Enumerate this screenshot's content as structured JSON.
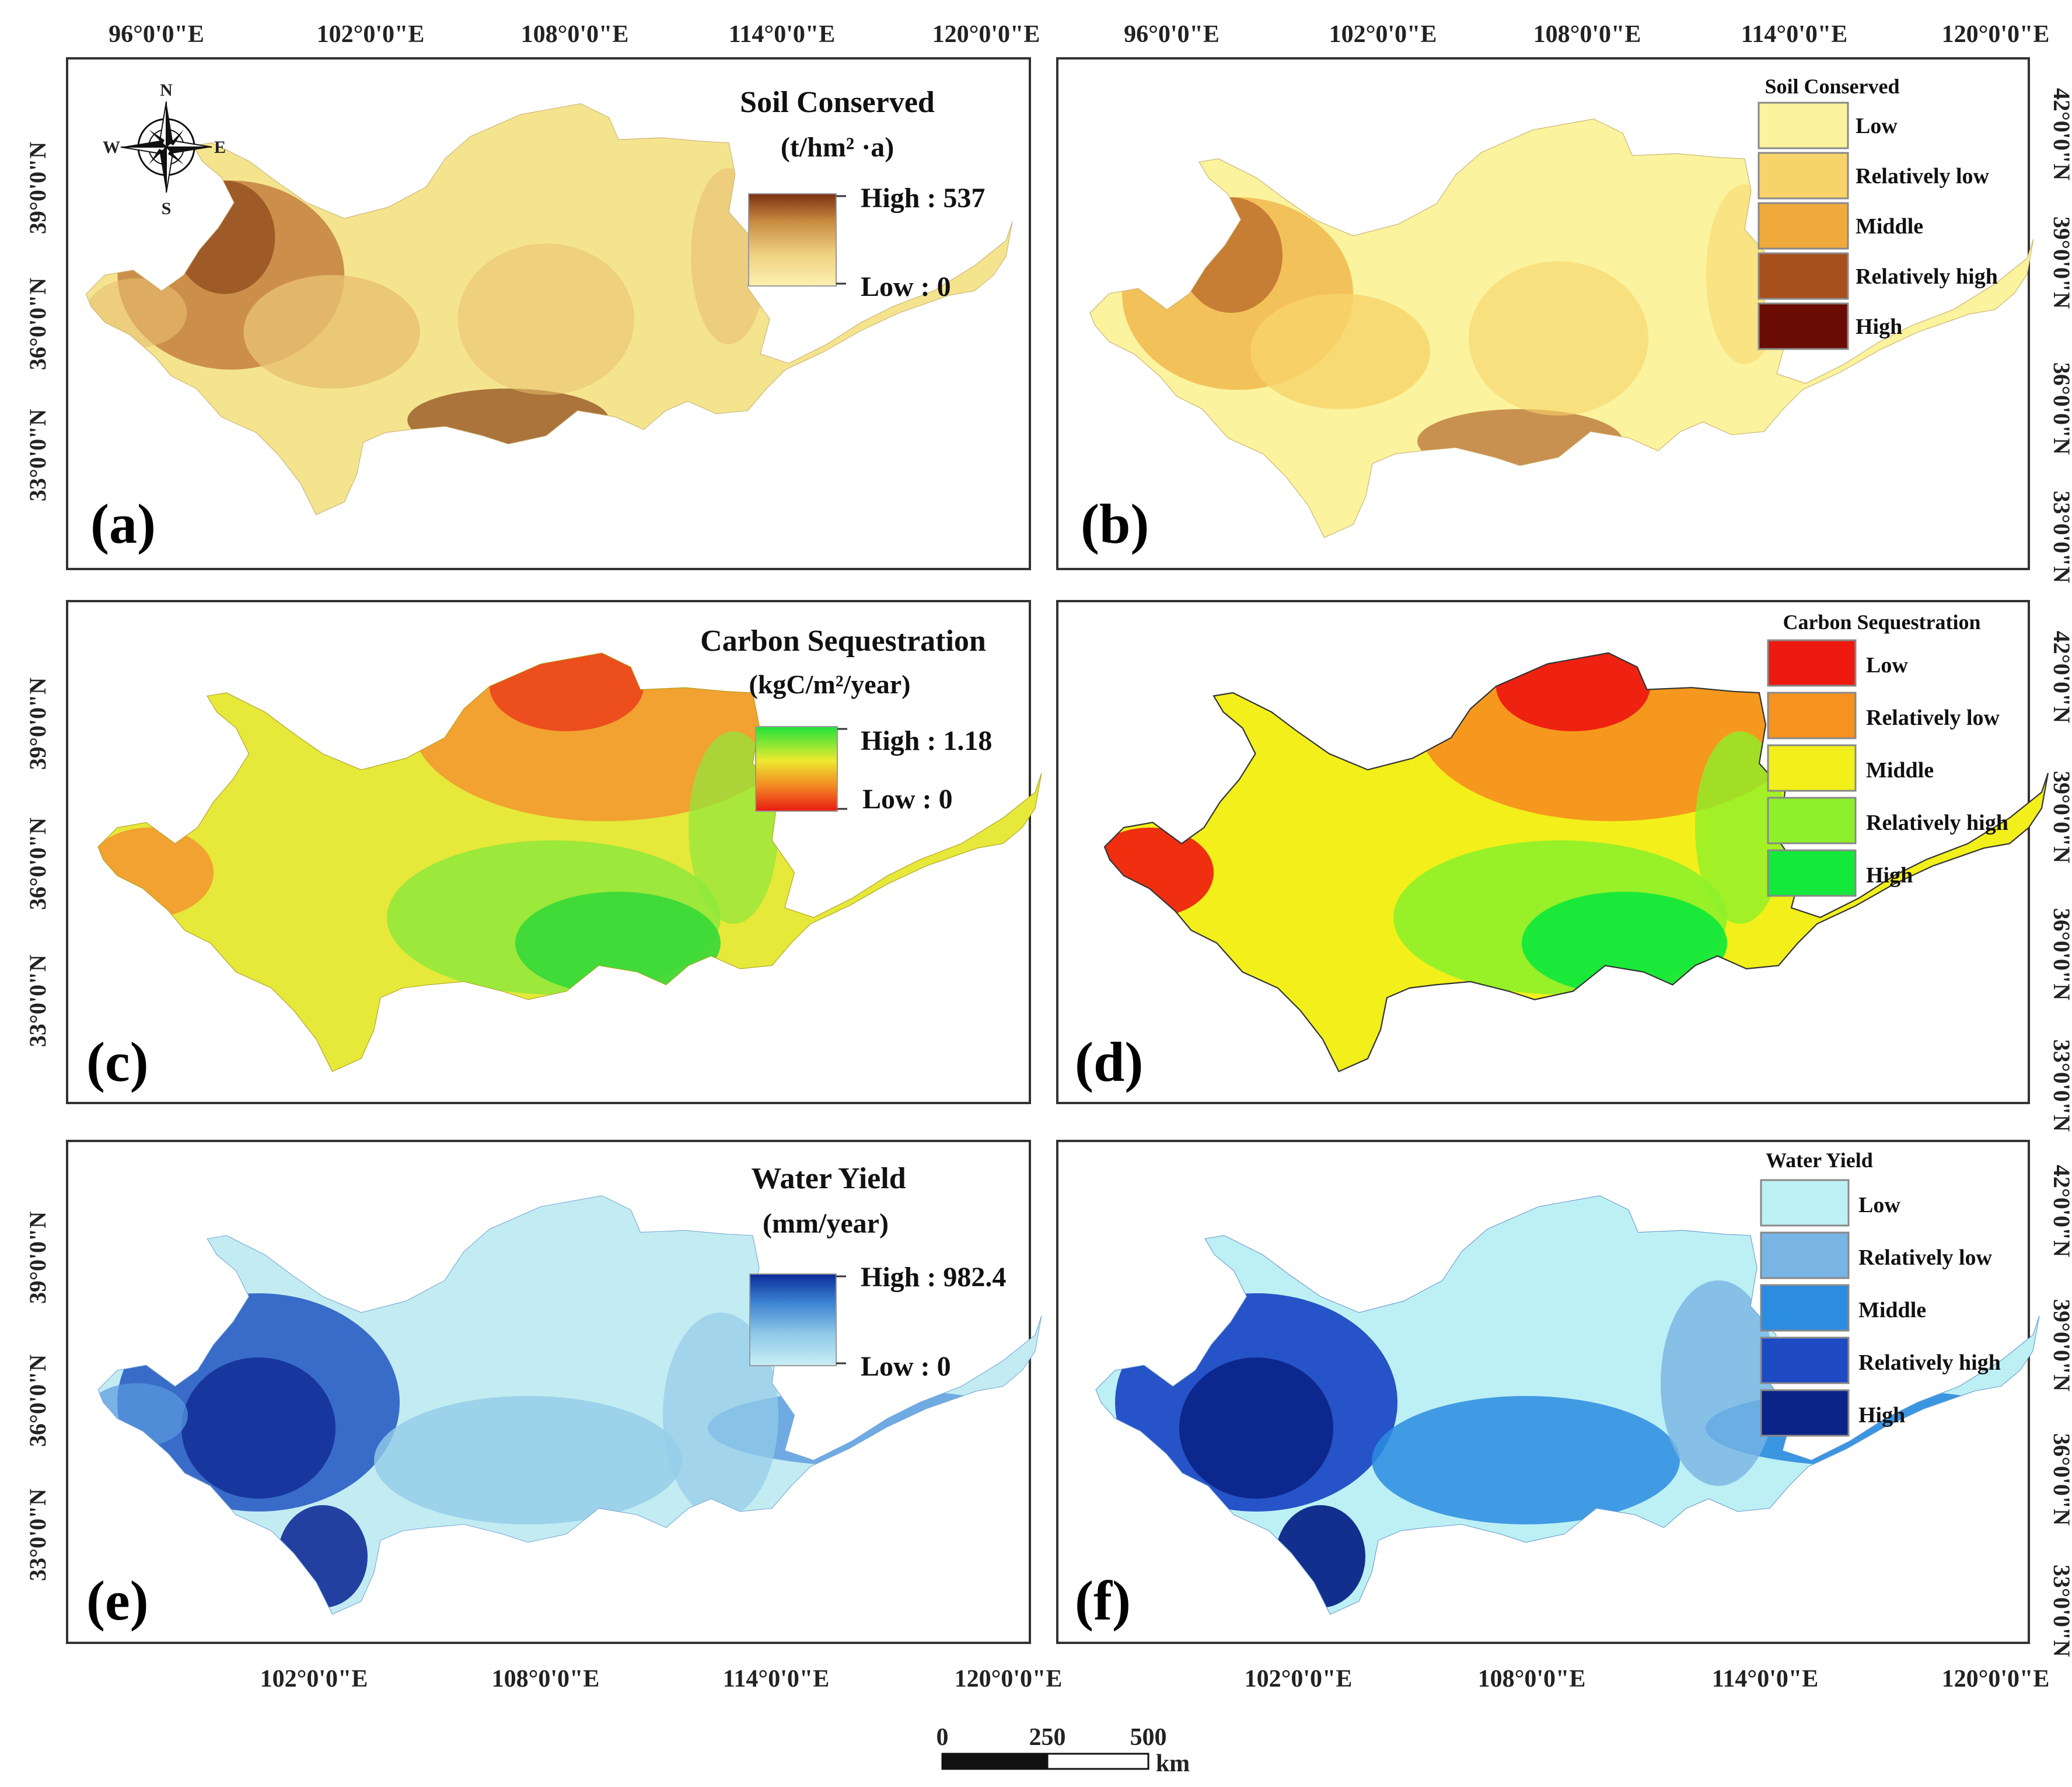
{
  "figure": {
    "panels": [
      {
        "id": "a",
        "label": "(a)",
        "title": "Soil Conserved",
        "unit": "(t/hm² ·a)",
        "legend_type": "continuous",
        "high": "High : 537",
        "low": "Low : 0",
        "ramp_colors": [
          "#fbf0b0",
          "#f0d080",
          "#c88a40",
          "#7a3010"
        ],
        "region_colors": [
          "#f5e48e",
          "#e8c070",
          "#c48040",
          "#8a4418"
        ]
      },
      {
        "id": "b",
        "label": "(b)",
        "title": "Soil Conserved",
        "legend_type": "classified",
        "classes": [
          "Low",
          "Relatively low",
          "Middle",
          "Relatively high",
          "High"
        ],
        "class_colors": [
          "#fbf39d",
          "#f8d36a",
          "#f0ab3c",
          "#a8501c",
          "#6a0c04"
        ]
      },
      {
        "id": "c",
        "label": "(c)",
        "title": "Carbon Sequestration",
        "unit": "(kgC/m²/year)",
        "legend_type": "continuous",
        "high": "High : 1.18",
        "low": "Low : 0",
        "ramp_colors": [
          "#e81a12",
          "#f28a24",
          "#eeea30",
          "#1ee23a"
        ],
        "region_colors": [
          "#ec4a1c",
          "#f29a30",
          "#e6e83a",
          "#8ee83c",
          "#36d83a"
        ]
      },
      {
        "id": "d",
        "label": "(d)",
        "title": "Carbon Sequestration",
        "legend_type": "classified",
        "classes": [
          "Low",
          "Relatively low",
          "Middle",
          "Relatively high",
          "High"
        ],
        "class_colors": [
          "#ee1a10",
          "#f6921e",
          "#f2ef1a",
          "#8ef02a",
          "#14e83a"
        ]
      },
      {
        "id": "e",
        "label": "(e)",
        "title": "Water Yield",
        "unit": "(mm/year)",
        "legend_type": "continuous",
        "high": "High : 982.4",
        "low": "Low : 0",
        "ramp_colors": [
          "#c8eef4",
          "#8ec8e8",
          "#3a80d0",
          "#0a2a98"
        ],
        "region_colors": [
          "#c2ecf2",
          "#94cce8",
          "#5a9ade",
          "#2a5ec4",
          "#122e98"
        ]
      },
      {
        "id": "f",
        "label": "(f)",
        "title": "Water Yield",
        "legend_type": "classified",
        "classes": [
          "Low",
          "Relatively low",
          "Middle",
          "Relatively high",
          "High"
        ],
        "class_colors": [
          "#bdf0f4",
          "#78b4e4",
          "#2c8ce0",
          "#1e4ac4",
          "#0a2488"
        ]
      }
    ],
    "longitude_ticks_top": [
      "96°0'0\"E",
      "102°0'0\"E",
      "108°0'0\"E",
      "114°0'0\"E",
      "120°0'0\"E"
    ],
    "longitude_ticks_bottom": [
      "102°0'0\"E",
      "108°0'0\"E",
      "114°0'0\"E",
      "120°0'0\"E"
    ],
    "latitude_ticks": [
      "33°0'0\"N",
      "36°0'0\"N",
      "39°0'0\"N",
      "42°0'0\"N"
    ],
    "north_arrow": {
      "n": "N",
      "s": "S",
      "e": "E",
      "w": "W"
    },
    "scale_bar": {
      "ticks": [
        "0",
        "250",
        "500"
      ],
      "unit": "km"
    }
  }
}
